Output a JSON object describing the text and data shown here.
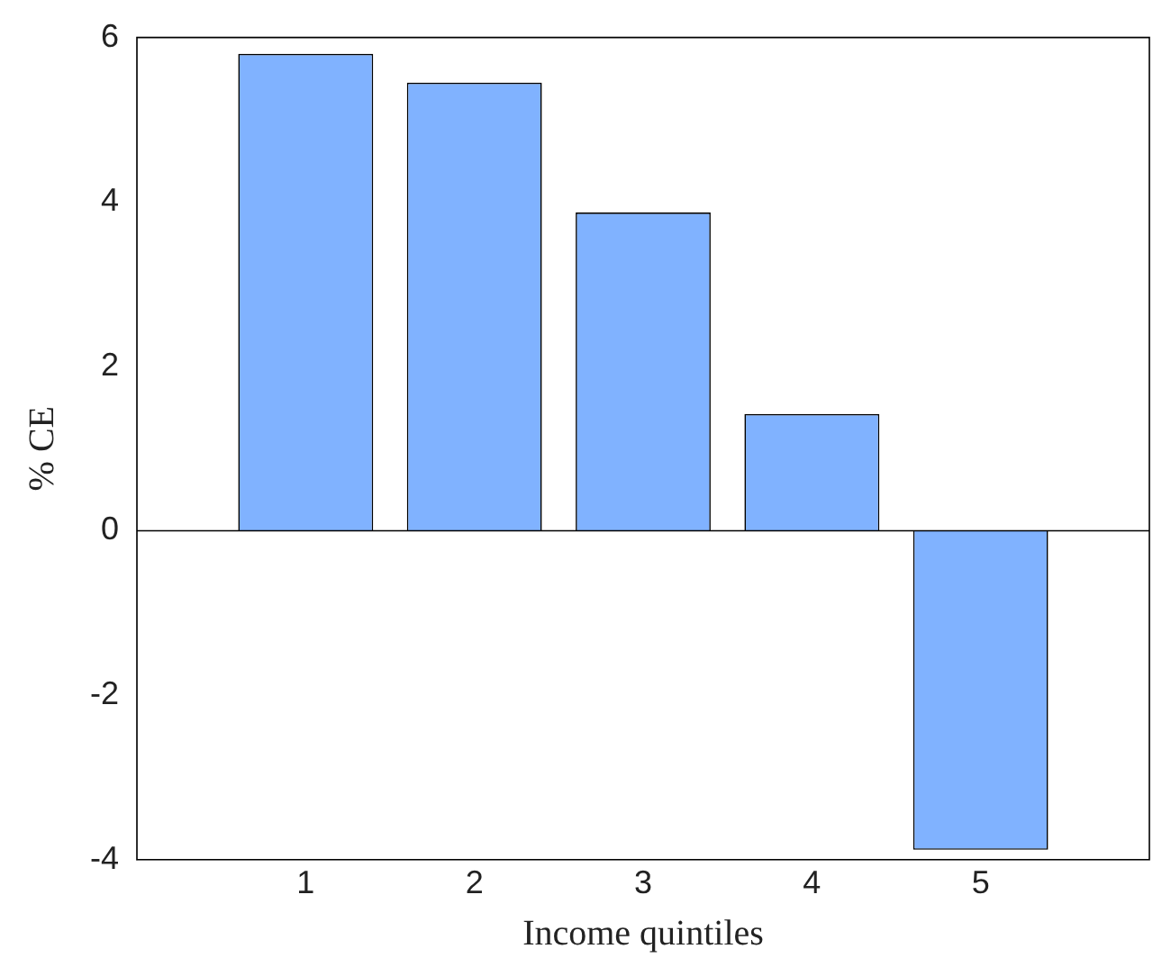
{
  "chart_data": {
    "type": "bar",
    "xlabel": "Income quintiles",
    "ylabel": "% CE",
    "x": [
      1,
      2,
      3,
      4,
      5
    ],
    "values": [
      5.8,
      5.45,
      3.87,
      1.42,
      -3.88
    ],
    "color": "#80b2ff",
    "xlim": [
      0,
      6
    ],
    "xticks": [
      1,
      2,
      3,
      4,
      5
    ],
    "ylim": [
      -4,
      6
    ],
    "yticks": [
      -4,
      -2,
      0,
      2,
      4,
      6
    ],
    "ref_lines": [
      {
        "axis": "y",
        "value": 0,
        "color": "#000000"
      }
    ],
    "grid": false,
    "legend": false
  }
}
